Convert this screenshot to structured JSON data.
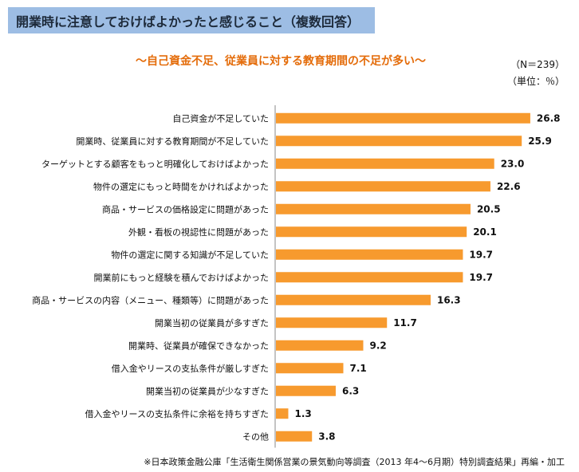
{
  "header": {
    "title": "開業時に注意しておけばよかったと感じること（複数回答）",
    "band_color": "#9dbde4"
  },
  "subtitle": "～自己資金不足、従業員に対する教育期間の不足が多い～",
  "n_label": "（N＝239）",
  "unit_label": "（単位：％）",
  "footnote": "※日本政策金融公庫「生活衛生関係営業の景気動向等調査（2013 年4～6月期）特別調査結果」再編・加工",
  "colors": {
    "bar": "#f79a2e",
    "accent_text": "#e46c0a"
  },
  "chart_data": {
    "type": "bar",
    "orientation": "horizontal",
    "categories": [
      "自己資金が不足していた",
      "開業時、従業員に対する教育期間が不足していた",
      "ターゲットとする顧客をもっと明確化しておけばよかった",
      "物件の選定にもっと時間をかければよかった",
      "商品・サービスの価格設定に問題があった",
      "外観・看板の視認性に問題があった",
      "物件の選定に関する知識が不足していた",
      "開業前にもっと経験を積んでおけばよかった",
      "商品・サービスの内容（メニュー、種類等）に問題があった",
      "開業当初の従業員が多すぎた",
      "開業時、従業員が確保できなかった",
      "借入金やリースの支払条件が厳しすぎた",
      "開業当初の従業員が少なすぎた",
      "借入金やリースの支払条件に余裕を持ちすぎた",
      "その他"
    ],
    "values": [
      26.8,
      25.9,
      23.0,
      22.6,
      20.5,
      20.1,
      19.7,
      19.7,
      16.3,
      11.7,
      9.2,
      7.1,
      6.3,
      1.3,
      3.8
    ],
    "value_labels": [
      "26.8",
      "25.9",
      "23.0",
      "22.6",
      "20.5",
      "20.1",
      "19.7",
      "19.7",
      "16.3",
      "11.7",
      "9.2",
      "7.1",
      "6.3",
      "1.3",
      "3.8"
    ],
    "xlim": [
      0,
      30
    ],
    "grid": false
  }
}
